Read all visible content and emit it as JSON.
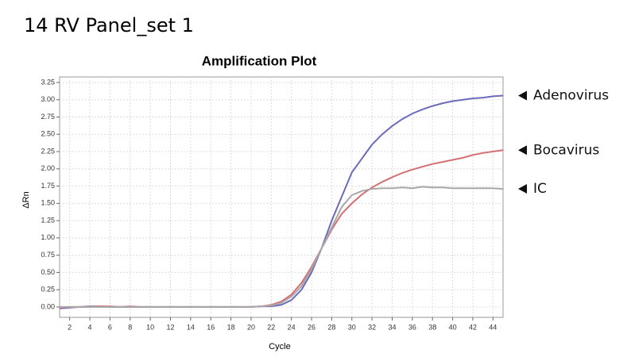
{
  "header": {
    "title": "14 RV Panel_set 1"
  },
  "chart_data": {
    "type": "line",
    "title": "Amplification Plot",
    "x_label": "Cycle",
    "y_label": "ΔRn",
    "x": [
      1,
      2,
      3,
      4,
      5,
      6,
      7,
      8,
      9,
      10,
      11,
      12,
      13,
      14,
      15,
      16,
      17,
      18,
      19,
      20,
      21,
      22,
      23,
      24,
      25,
      26,
      27,
      28,
      29,
      30,
      31,
      32,
      33,
      34,
      35,
      36,
      37,
      38,
      39,
      40,
      41,
      42,
      43,
      44,
      45
    ],
    "series": [
      {
        "name": "Adenovirus",
        "color": "#6b6bbd",
        "values": [
          -0.02,
          -0.01,
          0,
          0.01,
          0.01,
          0,
          0,
          0,
          0,
          0,
          0,
          0,
          0,
          0,
          0,
          0,
          0,
          0,
          0,
          0,
          0.01,
          0.01,
          0.03,
          0.1,
          0.25,
          0.5,
          0.85,
          1.25,
          1.6,
          1.95,
          2.15,
          2.35,
          2.5,
          2.62,
          2.72,
          2.8,
          2.86,
          2.91,
          2.95,
          2.98,
          3.0,
          3.02,
          3.03,
          3.05,
          3.06
        ]
      },
      {
        "name": "Bocavirus",
        "color": "#d46f72",
        "values": [
          -0.01,
          0,
          0,
          0,
          0.01,
          0.01,
          0,
          0.01,
          0,
          0,
          0,
          0,
          0,
          0,
          0,
          0,
          0,
          0,
          0,
          0,
          0.01,
          0.03,
          0.08,
          0.18,
          0.35,
          0.58,
          0.85,
          1.12,
          1.35,
          1.5,
          1.63,
          1.73,
          1.81,
          1.88,
          1.94,
          1.99,
          2.03,
          2.07,
          2.1,
          2.13,
          2.16,
          2.2,
          2.23,
          2.25,
          2.27
        ]
      },
      {
        "name": "IC",
        "color": "#a8a8a8",
        "values": [
          0,
          0,
          0,
          0,
          0,
          0,
          0,
          0,
          0,
          0,
          0,
          0,
          0,
          0,
          0,
          0,
          0,
          0,
          0,
          0,
          0.01,
          0.02,
          0.06,
          0.15,
          0.3,
          0.55,
          0.85,
          1.15,
          1.45,
          1.62,
          1.68,
          1.71,
          1.72,
          1.72,
          1.73,
          1.72,
          1.74,
          1.73,
          1.73,
          1.72,
          1.72,
          1.72,
          1.72,
          1.72,
          1.71
        ]
      }
    ],
    "xlim": [
      1,
      45
    ],
    "ylim": [
      -0.15,
      3.33
    ],
    "xticks": [
      2,
      4,
      6,
      8,
      10,
      12,
      14,
      16,
      18,
      20,
      22,
      24,
      26,
      28,
      30,
      32,
      34,
      36,
      38,
      40,
      42,
      44
    ],
    "yticks": [
      {
        "value": 0,
        "label": "0.00"
      },
      {
        "value": 0.25,
        "label": "0.25"
      },
      {
        "value": 0.5,
        "label": "0.50"
      },
      {
        "value": 0.75,
        "label": "0.75"
      },
      {
        "value": 1,
        "label": "1.00"
      },
      {
        "value": 1.25,
        "label": "1.25"
      },
      {
        "value": 1.5,
        "label": "1.50"
      },
      {
        "value": 1.75,
        "label": "1.75"
      },
      {
        "value": 2,
        "label": "2.00"
      },
      {
        "value": 2.25,
        "label": "2.25"
      },
      {
        "value": 2.5,
        "label": "2.50"
      },
      {
        "value": 2.75,
        "label": "2.75"
      },
      {
        "value": 3,
        "label": "3.00"
      },
      {
        "value": 3.25,
        "label": "3.25"
      }
    ],
    "grid": true
  }
}
